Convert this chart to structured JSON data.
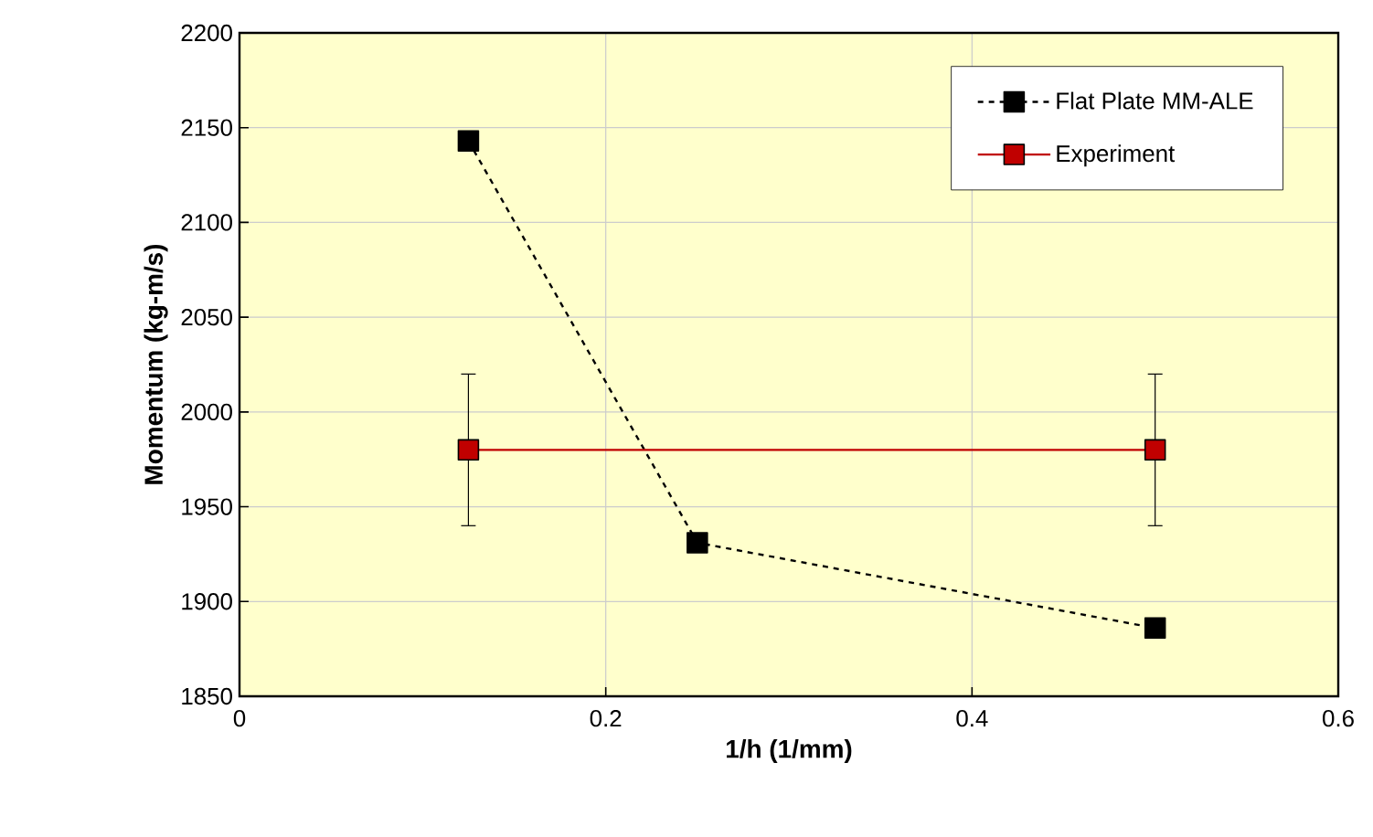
{
  "chart_data": {
    "type": "line",
    "xlabel": "1/h (1/mm)",
    "ylabel": "Momentum (kg-m/s)",
    "xlim": [
      0,
      0.6
    ],
    "xticks": [
      0,
      0.2,
      0.4,
      0.6
    ],
    "ylim": [
      1850,
      2200
    ],
    "yticks": [
      1850,
      1900,
      1950,
      2000,
      2050,
      2100,
      2150,
      2200
    ],
    "grid": true,
    "legend": "top right",
    "marker": "square",
    "series": [
      {
        "name": "Flat Plate MM-ALE",
        "color": "#000000",
        "line_style": "dashed",
        "x": [
          0.125,
          0.25,
          0.5
        ],
        "values": [
          2143,
          1931,
          1886
        ]
      },
      {
        "name": "Experiment",
        "color": "#c00000",
        "line_style": "solid",
        "x": [
          0.125,
          0.5
        ],
        "values": [
          1980,
          1980
        ],
        "errors": [
          40,
          40
        ]
      }
    ]
  }
}
